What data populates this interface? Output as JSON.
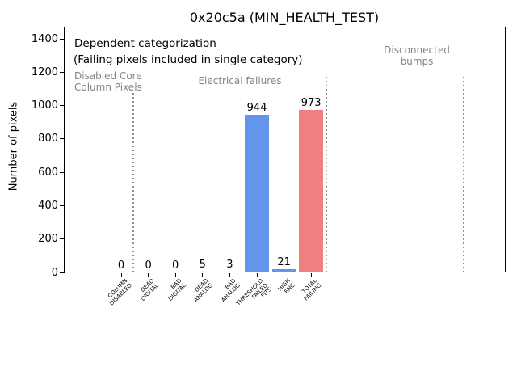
{
  "chart_data": {
    "type": "bar",
    "title": "0x20c5a (MIN_HEALTH_TEST)",
    "xlabel": "",
    "ylabel": "Number of pixels",
    "categories": [
      "COLUMN\nDISABLED",
      "DEAD\nDIGITAL",
      "BAD\nDIGITAL",
      "DEAD\nANALOG",
      "BAD\nANALOG",
      "THRESHOLD\nFAILED\nFITS",
      "HIGH\nENC",
      "TOTAL\nFAILING"
    ],
    "values": [
      0,
      0,
      0,
      5,
      3,
      944,
      21,
      973
    ],
    "bar_value_labels": [
      "0",
      "0",
      "0",
      "5",
      "3",
      "944",
      "21",
      "973"
    ],
    "bar_colors": [
      "#6495ED",
      "#6495ED",
      "#6495ED",
      "#6495ED",
      "#6495ED",
      "#6495ED",
      "#6495ED",
      "#F08080"
    ],
    "yticks": [
      0,
      200,
      400,
      600,
      800,
      1000,
      1200,
      1400
    ],
    "ylim": [
      0,
      1469
    ],
    "xlim": [
      -2.08,
      14.17
    ],
    "grid": false,
    "legend": false,
    "annotations": {
      "dependent": "Dependent categorization",
      "failing": "(Failing pixels included in single category)",
      "disabled_core": "Disabled Core\nColumn Pixels",
      "electrical": "Electrical failures",
      "disconnected": "Disconnected\nbumps"
    },
    "separators": [
      {
        "x": 0.46,
        "ymax": 1075
      },
      {
        "x": 7.56,
        "ymax": 1172
      },
      {
        "x": 12.63,
        "ymax": 1172
      }
    ],
    "colors": {
      "bar_blue": "#6495ED",
      "bar_red": "#F08080",
      "annotation_gray": "#848484",
      "separator_gray": "#8e8e8e",
      "axis_black": "#000000"
    }
  }
}
